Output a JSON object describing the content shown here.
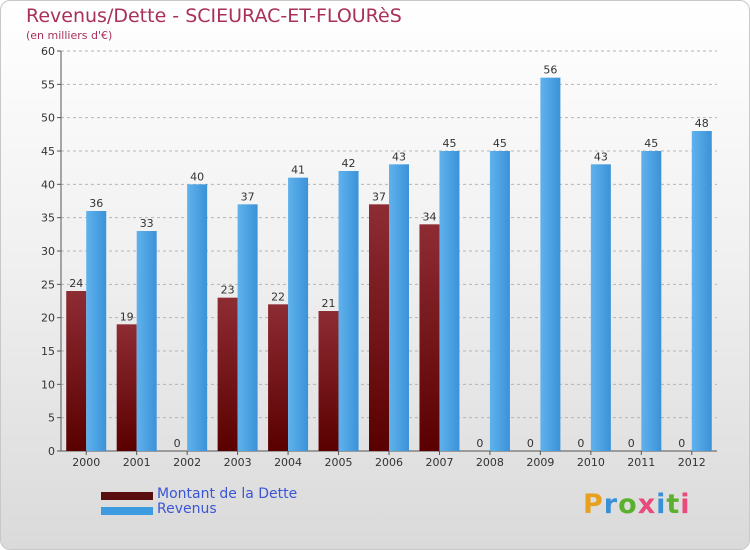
{
  "title": "Revenus/Dette - SCIEURAC-ET-FLOURèS",
  "subtitle": "(en milliers d'€)",
  "chart_data": {
    "type": "bar",
    "categories": [
      "2000",
      "2001",
      "2002",
      "2003",
      "2004",
      "2005",
      "2006",
      "2007",
      "2008",
      "2009",
      "2010",
      "2011",
      "2012"
    ],
    "series": [
      {
        "name": "Montant de la Dette",
        "values": [
          24,
          19,
          0,
          23,
          22,
          21,
          37,
          34,
          0,
          0,
          0,
          0,
          0
        ],
        "color": "#7a1c1c"
      },
      {
        "name": "Revenus",
        "values": [
          36,
          33,
          40,
          37,
          41,
          42,
          43,
          45,
          45,
          56,
          43,
          45,
          48
        ],
        "color": "#3d9be0"
      }
    ],
    "ylim": [
      0,
      60
    ],
    "yticks": [
      0,
      5,
      10,
      15,
      20,
      25,
      30,
      35,
      40,
      45,
      50,
      55,
      60
    ],
    "grid": true,
    "legend": "bottom-left"
  },
  "legend": {
    "debt_label": "Montant de la Dette",
    "revenue_label": "Revenus"
  },
  "logo": {
    "text": "Proxiti",
    "colors": [
      "#e8a020",
      "#3b8fd6",
      "#5cb030",
      "#e94a7c",
      "#3b8fd6",
      "#5cb030",
      "#e94a7c"
    ]
  }
}
